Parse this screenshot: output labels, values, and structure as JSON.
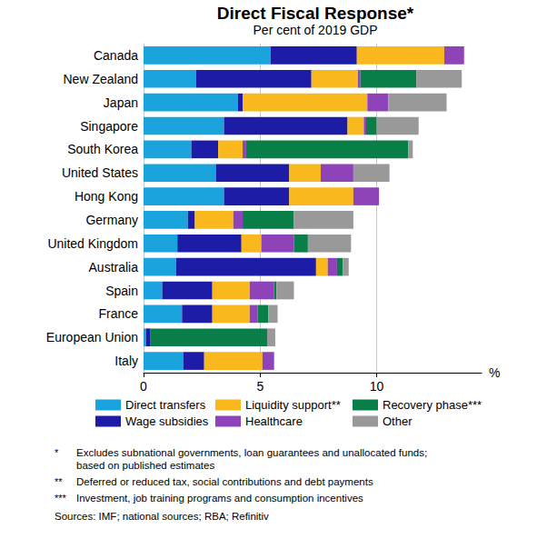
{
  "chart_data": {
    "type": "bar",
    "orientation": "horizontal",
    "stacked": true,
    "title": "Direct Fiscal Response*",
    "subtitle": "Per cent of 2019 GDP",
    "categories": [
      "Canada",
      "New Zealand",
      "Japan",
      "Singapore",
      "South Korea",
      "United States",
      "Hong Kong",
      "Germany",
      "United Kingdom",
      "Australia",
      "Spain",
      "France",
      "European Union",
      "Italy"
    ],
    "series": [
      {
        "name": "Direct transfers",
        "color": "#1aa3dc",
        "values": [
          5.45,
          2.25,
          4.05,
          3.45,
          2.05,
          3.1,
          3.45,
          1.9,
          1.45,
          1.4,
          0.8,
          1.65,
          0.1,
          1.7
        ]
      },
      {
        "name": "Wage subsidies",
        "color": "#1c1ca6",
        "values": [
          3.7,
          4.95,
          0.2,
          5.3,
          1.15,
          3.15,
          2.8,
          0.3,
          2.75,
          6.0,
          2.15,
          1.3,
          0.2,
          0.9
        ]
      },
      {
        "name": "Liquidity support**",
        "color": "#f8b81e",
        "values": [
          3.75,
          2.0,
          5.35,
          0.7,
          1.05,
          1.35,
          2.75,
          1.65,
          0.85,
          0.5,
          1.6,
          1.6,
          0,
          2.5
        ]
      },
      {
        "name": "Healthcare",
        "color": "#8e44b8",
        "values": [
          0.85,
          0.1,
          0.9,
          0.1,
          0.15,
          1.4,
          1.1,
          0.4,
          1.4,
          0.4,
          1.05,
          0.35,
          0,
          0.5
        ]
      },
      {
        "name": "Recovery phase***",
        "color": "#0a7e48",
        "values": [
          0,
          2.4,
          0,
          0.45,
          6.95,
          0,
          0,
          2.2,
          0.6,
          0.25,
          0.1,
          0.45,
          5.0,
          0
        ]
      },
      {
        "name": "Other",
        "color": "#999999",
        "values": [
          0,
          1.95,
          2.5,
          1.8,
          0.2,
          1.55,
          0,
          2.55,
          1.85,
          0.25,
          0.75,
          0.4,
          0.35,
          0
        ]
      }
    ],
    "xlim": [
      0,
      14.5
    ],
    "xticks": [
      0,
      5,
      10
    ],
    "x_label": "%",
    "grid": true,
    "legend": "bottom",
    "footnotes": [
      {
        "symbol": "*",
        "lines": [
          "Excludes subnational governments, loan guarantees and unallocated funds;",
          "based on published estimates"
        ]
      },
      {
        "symbol": "**",
        "lines": [
          "Deferred or reduced tax, social contributions and debt payments"
        ]
      },
      {
        "symbol": "***",
        "lines": [
          "Investment, job training programs and consumption incentives"
        ]
      }
    ],
    "sources": "Sources: IMF; national sources; RBA; Refinitiv"
  }
}
